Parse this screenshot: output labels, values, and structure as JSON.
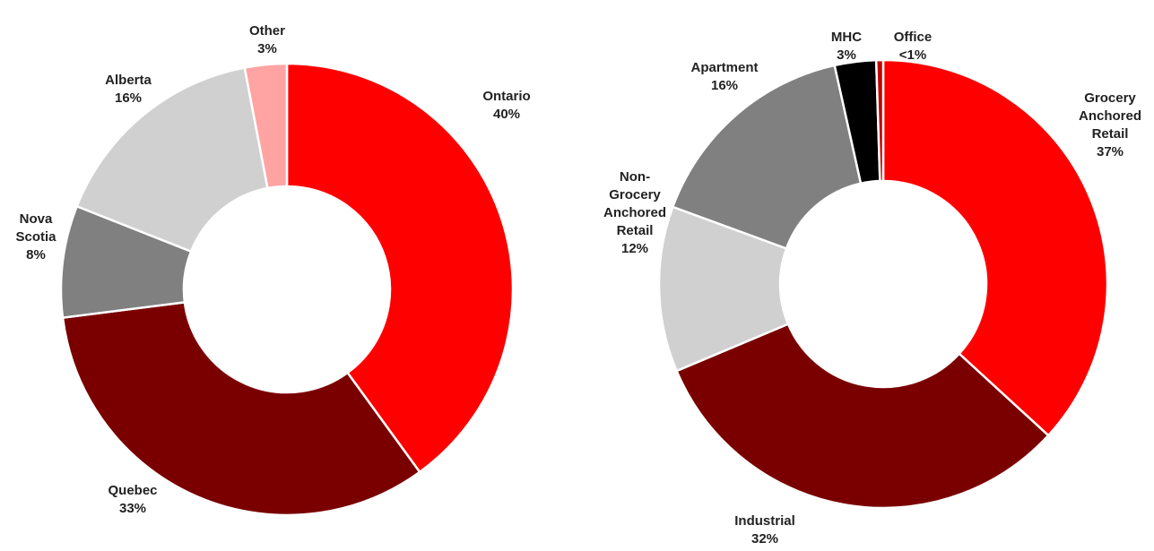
{
  "chart_data": [
    {
      "type": "pie",
      "donut": true,
      "categories": [
        "Ontario",
        "Quebec",
        "Nova Scotia",
        "Alberta",
        "Other"
      ],
      "values": [
        40,
        33,
        8,
        16,
        3
      ],
      "value_labels": [
        "40%",
        "33%",
        "8%",
        "16%",
        "3%"
      ],
      "colors": [
        "#ff0000",
        "#7a0000",
        "#808080",
        "#d0d0d0",
        "#ffa3a3"
      ]
    },
    {
      "type": "pie",
      "donut": true,
      "categories": [
        "Grocery Anchored Retail",
        "Industrial",
        "Non-Grocery Anchored Retail",
        "Apartment",
        "MHC",
        "Office"
      ],
      "values": [
        37,
        32,
        12,
        16,
        3,
        0.5
      ],
      "value_labels": [
        "37%",
        "32%",
        "12%",
        "16%",
        "3%",
        "<1%"
      ],
      "colors": [
        "#ff0000",
        "#7a0000",
        "#d0d0d0",
        "#808080",
        "#000000",
        "#c00000"
      ]
    }
  ]
}
